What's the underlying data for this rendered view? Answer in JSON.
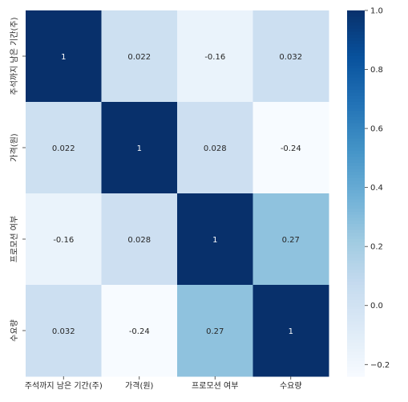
{
  "chart_data": {
    "type": "heatmap",
    "title": "",
    "xlabel": "",
    "ylabel": "",
    "x_labels": [
      "주석까지 남은 기간(주)",
      "가격(원)",
      "프로모션 여부",
      "수요량"
    ],
    "y_labels": [
      "주석까지 남은 기간(주)",
      "가격(원)",
      "프로모션 여부",
      "수요량"
    ],
    "values": [
      [
        1,
        0.022,
        -0.16,
        0.032
      ],
      [
        0.022,
        1,
        0.028,
        -0.24
      ],
      [
        -0.16,
        0.028,
        1,
        0.27
      ],
      [
        0.032,
        -0.24,
        0.27,
        1
      ]
    ],
    "annotations": [
      [
        "1",
        "0.022",
        "-0.16",
        "0.032"
      ],
      [
        "0.022",
        "1",
        "0.028",
        "-0.24"
      ],
      [
        "-0.16",
        "0.028",
        "1",
        "0.27"
      ],
      [
        "0.032",
        "-0.24",
        "0.27",
        "1"
      ]
    ],
    "colormap": "Blues",
    "colorbar": {
      "min": -0.24,
      "max": 1.0,
      "ticks": [
        -0.2,
        0.0,
        0.2,
        0.4,
        0.6,
        0.8,
        1.0
      ],
      "tick_labels": [
        "−0.2",
        "0.0",
        "0.2",
        "0.4",
        "0.6",
        "0.8",
        "1.0"
      ]
    },
    "colors": {
      "low": "#f7fbff",
      "high": "#08306b"
    }
  }
}
